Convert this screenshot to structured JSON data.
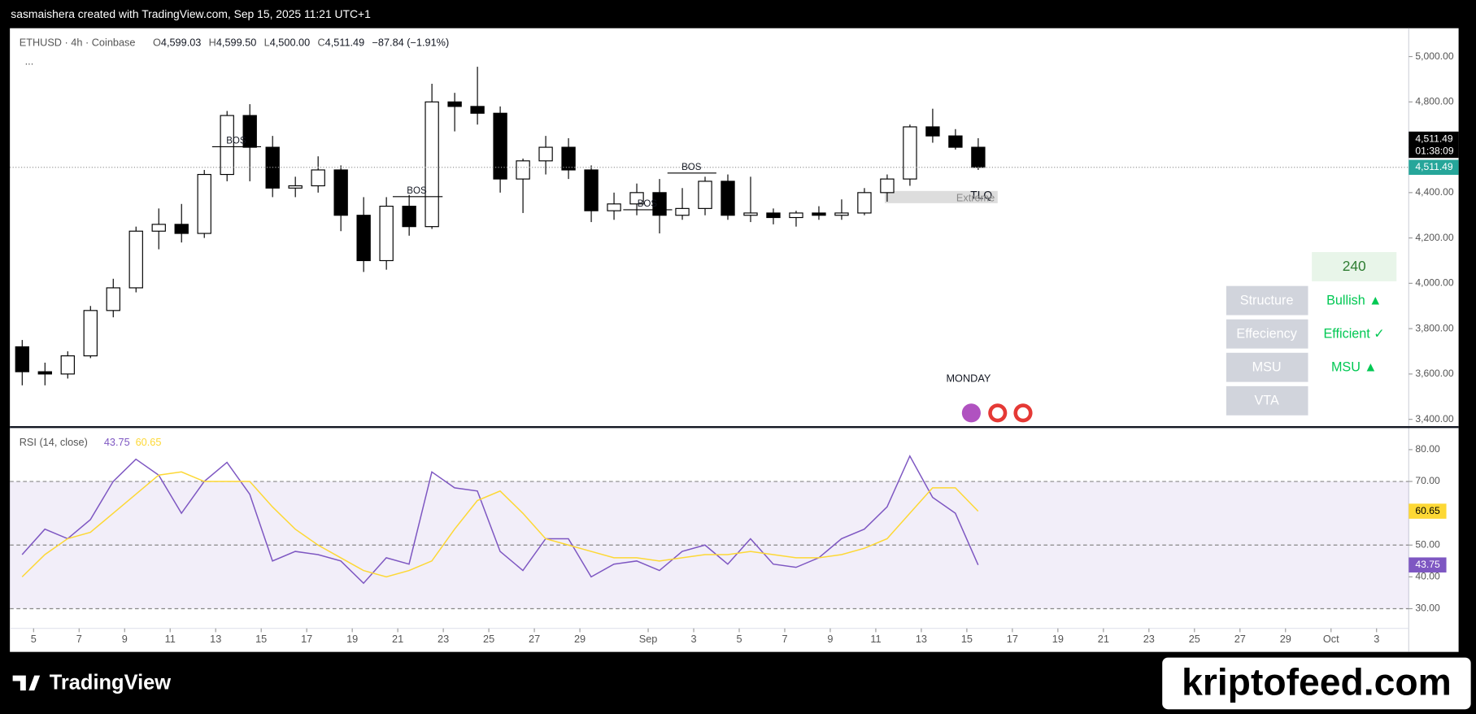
{
  "header": {
    "attribution": "sasmaishera created with TradingView.com, Sep 15, 2025 11:21 UTC+1"
  },
  "legend": {
    "symbol": "ETHUSD · 4h · Coinbase",
    "ohlc": [
      {
        "k": "O",
        "v": "4,599.03"
      },
      {
        "k": "H",
        "v": "4,599.50"
      },
      {
        "k": "L",
        "v": "4,500.00"
      },
      {
        "k": "C",
        "v": "4,511.49"
      }
    ],
    "change": "−87.84 (−1.91%)",
    "more": "..."
  },
  "chart_data": [
    {
      "type": "candlestick",
      "up_color": "#ffffff",
      "down_color": "#000000",
      "outline": "#000000",
      "x": [
        "Aug 4",
        "Aug 5",
        "Aug 6",
        "Aug 7",
        "Aug 8",
        "Aug 9",
        "Aug 10",
        "Aug 11",
        "Aug 12",
        "Aug 13",
        "Aug 14",
        "Aug 15",
        "Aug 16",
        "Aug 17",
        "Aug 18",
        "Aug 19",
        "Aug 20",
        "Aug 21",
        "Aug 22",
        "Aug 23",
        "Aug 24",
        "Aug 25",
        "Aug 26",
        "Aug 27",
        "Aug 28",
        "Aug 29",
        "Aug 30",
        "Aug 31",
        "Sep 1",
        "Sep 2",
        "Sep 3",
        "Sep 4",
        "Sep 5",
        "Sep 6",
        "Sep 7",
        "Sep 8",
        "Sep 9",
        "Sep 10",
        "Sep 11",
        "Sep 12",
        "Sep 13",
        "Sep 14",
        "Sep 15"
      ],
      "open": [
        3720,
        3610,
        3600,
        3680,
        3880,
        3980,
        4230,
        4260,
        4220,
        4480,
        4740,
        4600,
        4420,
        4430,
        4500,
        4300,
        4100,
        4340,
        4250,
        4800,
        4780,
        4750,
        4460,
        4540,
        4600,
        4500,
        4320,
        4350,
        4400,
        4300,
        4330,
        4450,
        4300,
        4310,
        4290,
        4310,
        4300,
        4310,
        4400,
        4460,
        4690,
        4650,
        4600
      ],
      "high": [
        3750,
        3650,
        3700,
        3900,
        4020,
        4250,
        4330,
        4350,
        4500,
        4760,
        4790,
        4650,
        4470,
        4560,
        4520,
        4380,
        4380,
        4390,
        4880,
        4840,
        4955,
        4780,
        4550,
        4650,
        4640,
        4520,
        4400,
        4440,
        4460,
        4420,
        4470,
        4480,
        4470,
        4330,
        4320,
        4340,
        4370,
        4420,
        4480,
        4700,
        4770,
        4680,
        4640
      ],
      "low": [
        3550,
        3550,
        3580,
        3670,
        3850,
        3960,
        4150,
        4180,
        4200,
        4450,
        4450,
        4380,
        4380,
        4400,
        4230,
        4050,
        4060,
        4210,
        4240,
        4670,
        4700,
        4400,
        4310,
        4480,
        4460,
        4270,
        4280,
        4300,
        4220,
        4280,
        4300,
        4280,
        4270,
        4260,
        4250,
        4280,
        4280,
        4300,
        4360,
        4430,
        4620,
        4590,
        4500
      ],
      "close": [
        3610,
        3600,
        3680,
        3880,
        3980,
        4230,
        4260,
        4220,
        4480,
        4740,
        4600,
        4420,
        4430,
        4500,
        4300,
        4100,
        4340,
        4250,
        4800,
        4780,
        4750,
        4460,
        4540,
        4600,
        4500,
        4320,
        4350,
        4400,
        4300,
        4330,
        4450,
        4300,
        4310,
        4290,
        4310,
        4300,
        4310,
        4400,
        4460,
        4690,
        4650,
        4600,
        4511.49
      ],
      "last_price_label": "4,511.49",
      "countdown": "01:38:09",
      "last_color": "#26a69a",
      "xlim": [
        "Aug 4",
        "Oct 4"
      ],
      "xticks": [
        {
          "value": "Aug 5",
          "label": "5"
        },
        {
          "value": "Aug 7",
          "label": "7"
        },
        {
          "value": "Aug 9",
          "label": "9"
        },
        {
          "value": "Aug 11",
          "label": "11"
        },
        {
          "value": "Aug 13",
          "label": "13"
        },
        {
          "value": "Aug 15",
          "label": "15"
        },
        {
          "value": "Aug 17",
          "label": "17"
        },
        {
          "value": "Aug 19",
          "label": "19"
        },
        {
          "value": "Aug 21",
          "label": "21"
        },
        {
          "value": "Aug 23",
          "label": "23"
        },
        {
          "value": "Aug 25",
          "label": "25"
        },
        {
          "value": "Aug 27",
          "label": "27"
        },
        {
          "value": "Aug 29",
          "label": "29"
        },
        {
          "value": "Sep 1",
          "label": "Sep"
        },
        {
          "value": "Sep 3",
          "label": "3"
        },
        {
          "value": "Sep 5",
          "label": "5"
        },
        {
          "value": "Sep 7",
          "label": "7"
        },
        {
          "value": "Sep 9",
          "label": "9"
        },
        {
          "value": "Sep 11",
          "label": "11"
        },
        {
          "value": "Sep 13",
          "label": "13"
        },
        {
          "value": "Sep 15",
          "label": "15"
        },
        {
          "value": "Sep 17",
          "label": "17"
        },
        {
          "value": "Sep 19",
          "label": "19"
        },
        {
          "value": "Sep 21",
          "label": "21"
        },
        {
          "value": "Sep 23",
          "label": "23"
        },
        {
          "value": "Sep 25",
          "label": "25"
        },
        {
          "value": "Sep 27",
          "label": "27"
        },
        {
          "value": "Sep 29",
          "label": "29"
        },
        {
          "value": "Oct 1",
          "label": "Oct"
        },
        {
          "value": "Oct 3",
          "label": "3"
        }
      ],
      "ylim": [
        3370,
        5125
      ],
      "yticks": [
        {
          "value": 3400,
          "label": "3,400.00"
        },
        {
          "value": 3600,
          "label": "3,600.00"
        },
        {
          "value": 3800,
          "label": "3,800.00"
        },
        {
          "value": 4000,
          "label": "4,000.00"
        },
        {
          "value": 4200,
          "label": "4,200.00"
        },
        {
          "value": 4400,
          "label": "4,400.00"
        },
        {
          "value": 4600,
          "label": "4,600.00"
        },
        {
          "value": 4800,
          "label": "4,800.00"
        },
        {
          "value": 5000,
          "label": "5,000.00"
        }
      ],
      "annotations": [
        "BOS",
        "BOS",
        "BOS",
        "BOS",
        "TLQ",
        "Extreme",
        "MONDAY"
      ]
    },
    {
      "type": "line",
      "title": "RSI (14, close)",
      "x": [
        "Aug 4",
        "Aug 5",
        "Aug 6",
        "Aug 7",
        "Aug 8",
        "Aug 9",
        "Aug 10",
        "Aug 11",
        "Aug 12",
        "Aug 13",
        "Aug 14",
        "Aug 15",
        "Aug 16",
        "Aug 17",
        "Aug 18",
        "Aug 19",
        "Aug 20",
        "Aug 21",
        "Aug 22",
        "Aug 23",
        "Aug 24",
        "Aug 25",
        "Aug 26",
        "Aug 27",
        "Aug 28",
        "Aug 29",
        "Aug 30",
        "Aug 31",
        "Sep 1",
        "Sep 2",
        "Sep 3",
        "Sep 4",
        "Sep 5",
        "Sep 6",
        "Sep 7",
        "Sep 8",
        "Sep 9",
        "Sep 10",
        "Sep 11",
        "Sep 12",
        "Sep 13",
        "Sep 14",
        "Sep 15"
      ],
      "series": [
        {
          "color": "#7e57c2",
          "values": [
            47,
            55,
            52,
            58,
            70,
            77,
            72,
            60,
            70,
            76,
            66,
            45,
            48,
            47,
            45,
            38,
            46,
            44,
            73,
            68,
            67,
            48,
            42,
            52,
            52,
            40,
            44,
            45,
            42,
            48,
            50,
            44,
            52,
            44,
            43,
            46,
            52,
            55,
            62,
            78,
            65,
            60,
            43.75
          ]
        },
        {
          "color": "#fdd835",
          "values": [
            40,
            47,
            52,
            54,
            60,
            66,
            72,
            73,
            70,
            70,
            70,
            62,
            55,
            50,
            46,
            42,
            40,
            42,
            45,
            55,
            64,
            67,
            60,
            52,
            50,
            48,
            46,
            46,
            45,
            46,
            47,
            47,
            48,
            47,
            46,
            46,
            47,
            49,
            52,
            60,
            68,
            68,
            60.65
          ]
        }
      ],
      "bands": {
        "upper": 70,
        "middle": 50,
        "lower": 30
      },
      "ylim": [
        23.8,
        86.8
      ],
      "yticks": [
        {
          "value": 30,
          "label": "30.00"
        },
        {
          "value": 40,
          "label": "40.00"
        },
        {
          "value": 50,
          "label": "50.00"
        },
        {
          "value": 70,
          "label": "70.00"
        },
        {
          "value": 80,
          "label": "80.00"
        }
      ]
    }
  ],
  "table": {
    "timeframe": "240",
    "rows": [
      [
        "Structure",
        "Bullish ▲"
      ],
      [
        "Effeciency",
        "Efficient ✓"
      ],
      [
        "MSU",
        "MSU ▲"
      ],
      [
        "VTA"
      ]
    ]
  },
  "footer": {
    "logo": "TradingView",
    "watermark": "kriptofeed.com"
  }
}
